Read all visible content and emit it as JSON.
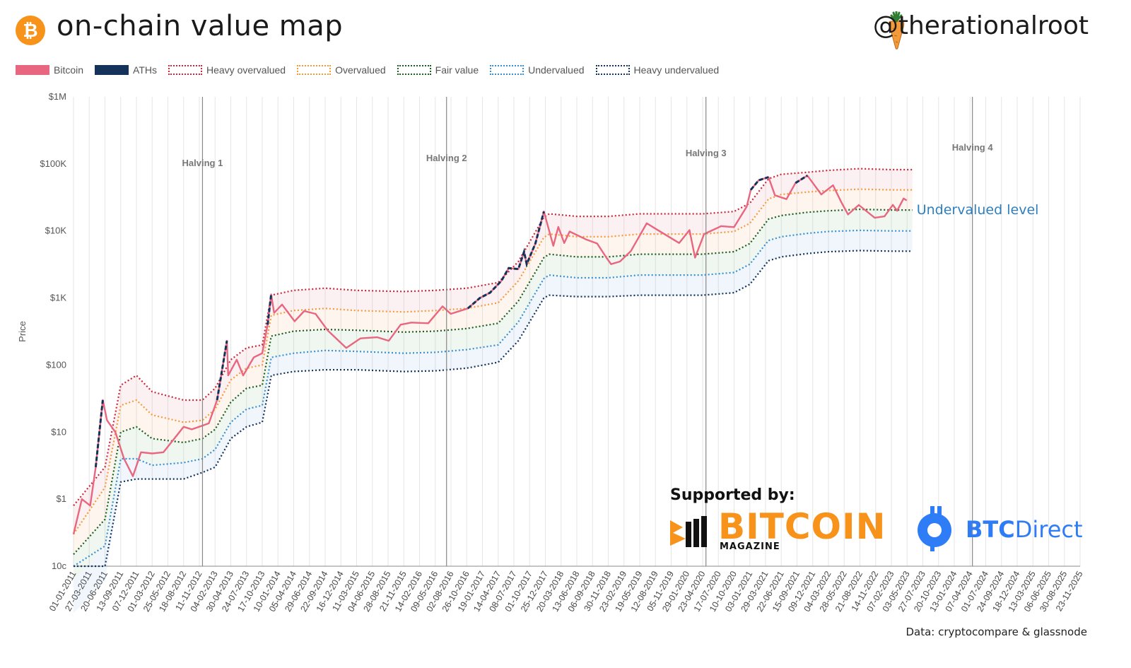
{
  "header": {
    "title": "on-chain value map",
    "handle": "@therationalroot",
    "logo_glyph": "₿",
    "logo_icon": "bitcoin-icon",
    "handle_icon": "carrot-icon"
  },
  "legend": [
    {
      "label": "Bitcoin",
      "color": "#e8667f",
      "style": "solid"
    },
    {
      "label": "ATHs",
      "color": "#14325a",
      "style": "solid"
    },
    {
      "label": "Heavy overvalued",
      "color": "#c8283c",
      "style": "dotted"
    },
    {
      "label": "Overvalued",
      "color": "#f59a3a",
      "style": "dotted"
    },
    {
      "label": "Fair value",
      "color": "#1b5e20",
      "style": "dotted"
    },
    {
      "label": "Undervalued",
      "color": "#3a8fd0",
      "style": "dotted"
    },
    {
      "label": "Heavy undervalued",
      "color": "#14325a",
      "style": "dotted"
    }
  ],
  "chart_data": {
    "type": "line",
    "ylabel": "Price",
    "yscale": "log",
    "ylim": [
      0.1,
      1000000
    ],
    "y_ticks": [
      "10c",
      "$1",
      "$10",
      "$100",
      "$1K",
      "$10K",
      "$100K",
      "$1M"
    ],
    "x_ticks": [
      "01-01-2011",
      "27-03-2011",
      "20-06-2011",
      "13-09-2011",
      "07-12-2011",
      "01-03-2012",
      "25-05-2012",
      "18-08-2012",
      "11-11-2012",
      "04-02-2013",
      "30-04-2013",
      "24-07-2013",
      "17-10-2013",
      "10-01-2014",
      "05-04-2014",
      "29-06-2014",
      "22-09-2014",
      "16-12-2014",
      "11-03-2015",
      "04-06-2015",
      "28-08-2015",
      "21-11-2015",
      "14-02-2016",
      "09-05-2016",
      "02-08-2016",
      "26-10-2016",
      "19-01-2017",
      "14-04-2017",
      "08-07-2017",
      "01-10-2017",
      "25-12-2017",
      "20-03-2018",
      "13-06-2018",
      "06-09-2018",
      "30-11-2018",
      "23-02-2019",
      "19-05-2019",
      "12-08-2019",
      "05-11-2019",
      "29-01-2020",
      "23-04-2020",
      "17-07-2020",
      "10-10-2020",
      "03-01-2021",
      "29-03-2021",
      "22-06-2021",
      "15-09-2021",
      "09-12-2021",
      "04-03-2022",
      "28-05-2022",
      "21-08-2022",
      "14-11-2022",
      "07-02-2023",
      "03-05-2023",
      "27-07-2023",
      "20-10-2023",
      "13-01-2024",
      "07-04-2024",
      "01-07-2024",
      "24-09-2024",
      "18-12-2024",
      "13-03-2025",
      "06-06-2025",
      "30-08-2025",
      "23-11-2025"
    ],
    "halvings": [
      {
        "label": "Halving 1",
        "date": "2012-11-28"
      },
      {
        "label": "Halving 2",
        "date": "2016-07-09"
      },
      {
        "label": "Halving 3",
        "date": "2020-05-11"
      },
      {
        "label": "Halving 4",
        "date": "2024-04-20"
      }
    ],
    "annotation": "Undervalued level",
    "bands": [
      {
        "name": "Heavy overvalued",
        "x": [
          "2011-01-01",
          "2011-06-20",
          "2011-09-13",
          "2011-12-07",
          "2012-03-01",
          "2012-08-18",
          "2012-11-28",
          "2013-02-04",
          "2013-04-30",
          "2013-07-24",
          "2013-10-17",
          "2013-12-05",
          "2014-04-05",
          "2014-09-22",
          "2015-03-11",
          "2015-11-21",
          "2016-05-09",
          "2016-10-26",
          "2017-04-14",
          "2017-08-01",
          "2017-12-17",
          "2018-01-15",
          "2018-06-13",
          "2018-11-30",
          "2019-05-19",
          "2019-11-05",
          "2020-04-23",
          "2020-10-10",
          "2021-01-03",
          "2021-04-14",
          "2021-06-22",
          "2021-11-10",
          "2022-03-04",
          "2022-08-21",
          "2023-02-07",
          "2023-06-01"
        ],
        "values": [
          0.8,
          3,
          50,
          70,
          40,
          30,
          30,
          45,
          120,
          180,
          200,
          1100,
          1300,
          1400,
          1300,
          1250,
          1300,
          1400,
          1700,
          3500,
          16000,
          18000,
          16500,
          16500,
          18000,
          18000,
          18000,
          19500,
          26000,
          60000,
          70000,
          75000,
          80000,
          85000,
          82000,
          82000
        ]
      },
      {
        "name": "Overvalued",
        "x": [
          "2011-01-01",
          "2011-06-20",
          "2011-09-13",
          "2011-12-07",
          "2012-03-01",
          "2012-08-18",
          "2012-11-28",
          "2013-02-04",
          "2013-04-30",
          "2013-07-24",
          "2013-10-17",
          "2013-12-05",
          "2014-04-05",
          "2014-09-22",
          "2015-03-11",
          "2015-11-21",
          "2016-05-09",
          "2016-10-26",
          "2017-04-14",
          "2017-08-01",
          "2017-12-17",
          "2018-01-15",
          "2018-06-13",
          "2018-11-30",
          "2019-05-19",
          "2019-11-05",
          "2020-04-23",
          "2020-10-10",
          "2021-01-03",
          "2021-04-14",
          "2021-06-22",
          "2021-11-10",
          "2022-03-04",
          "2022-08-21",
          "2023-02-07",
          "2023-06-01"
        ],
        "values": [
          0.3,
          1.5,
          25,
          30,
          18,
          14,
          15,
          22,
          60,
          90,
          100,
          550,
          650,
          700,
          650,
          620,
          650,
          700,
          850,
          1800,
          8000,
          9000,
          8200,
          8200,
          9000,
          9000,
          9000,
          9800,
          13000,
          30000,
          35000,
          38000,
          40000,
          42000,
          41000,
          41000
        ]
      },
      {
        "name": "Fair value",
        "x": [
          "2011-01-01",
          "2011-06-20",
          "2011-09-13",
          "2011-12-07",
          "2012-03-01",
          "2012-08-18",
          "2012-11-28",
          "2013-02-04",
          "2013-04-30",
          "2013-07-24",
          "2013-10-17",
          "2013-12-05",
          "2014-04-05",
          "2014-09-22",
          "2015-03-11",
          "2015-11-21",
          "2016-05-09",
          "2016-10-26",
          "2017-04-14",
          "2017-08-01",
          "2017-12-17",
          "2018-01-15",
          "2018-06-13",
          "2018-11-30",
          "2019-05-19",
          "2019-11-05",
          "2020-04-23",
          "2020-10-10",
          "2021-01-03",
          "2021-04-14",
          "2021-06-22",
          "2021-11-10",
          "2022-03-04",
          "2022-08-21",
          "2023-02-07",
          "2023-06-01"
        ],
        "values": [
          0.15,
          0.5,
          10,
          12,
          8,
          7,
          8,
          11,
          28,
          45,
          50,
          270,
          320,
          340,
          330,
          310,
          320,
          350,
          420,
          900,
          4000,
          4500,
          4100,
          4100,
          4500,
          4500,
          4500,
          4900,
          6500,
          15000,
          17000,
          19000,
          20000,
          21000,
          20500,
          20500
        ]
      },
      {
        "name": "Undervalued",
        "x": [
          "2011-01-01",
          "2011-06-20",
          "2011-09-13",
          "2011-12-07",
          "2012-03-01",
          "2012-08-18",
          "2012-11-28",
          "2013-02-04",
          "2013-04-30",
          "2013-07-24",
          "2013-10-17",
          "2013-12-05",
          "2014-04-05",
          "2014-09-22",
          "2015-03-11",
          "2015-11-21",
          "2016-05-09",
          "2016-10-26",
          "2017-04-14",
          "2017-08-01",
          "2017-12-17",
          "2018-01-15",
          "2018-06-13",
          "2018-11-30",
          "2019-05-19",
          "2019-11-05",
          "2020-04-23",
          "2020-10-10",
          "2021-01-03",
          "2021-04-14",
          "2021-06-22",
          "2021-11-10",
          "2022-03-04",
          "2022-08-21",
          "2023-02-07",
          "2023-06-01"
        ],
        "values": [
          0.06,
          0.2,
          4,
          4,
          3.2,
          3.5,
          4,
          5.5,
          14,
          22,
          25,
          130,
          150,
          165,
          160,
          150,
          155,
          170,
          200,
          440,
          1950,
          2200,
          2000,
          2000,
          2200,
          2200,
          2200,
          2400,
          3200,
          7200,
          8200,
          9200,
          9800,
          10200,
          10000,
          10000
        ]
      },
      {
        "name": "Heavy undervalued",
        "x": [
          "2011-01-01",
          "2011-06-20",
          "2011-09-13",
          "2011-12-07",
          "2012-03-01",
          "2012-08-18",
          "2012-11-28",
          "2013-02-04",
          "2013-04-30",
          "2013-07-24",
          "2013-10-17",
          "2013-12-05",
          "2014-04-05",
          "2014-09-22",
          "2015-03-11",
          "2015-11-21",
          "2016-05-09",
          "2016-10-26",
          "2017-04-14",
          "2017-08-01",
          "2017-12-17",
          "2018-01-15",
          "2018-06-13",
          "2018-11-30",
          "2019-05-19",
          "2019-11-05",
          "2020-04-23",
          "2020-10-10",
          "2021-01-03",
          "2021-04-14",
          "2021-06-22",
          "2021-11-10",
          "2022-03-04",
          "2022-08-21",
          "2023-02-07",
          "2023-06-01"
        ],
        "values": [
          0.02,
          0.06,
          1.8,
          2,
          2,
          2,
          2.5,
          3,
          8,
          12,
          14,
          70,
          80,
          85,
          85,
          80,
          82,
          90,
          110,
          230,
          1000,
          1100,
          1050,
          1050,
          1100,
          1100,
          1100,
          1200,
          1600,
          3600,
          4100,
          4600,
          4900,
          5100,
          5000,
          5000
        ]
      }
    ],
    "bitcoin": {
      "x": [
        "2011-01-01",
        "2011-02-15",
        "2011-04-01",
        "2011-05-01",
        "2011-06-08",
        "2011-07-01",
        "2011-08-15",
        "2011-10-01",
        "2011-11-18",
        "2012-01-01",
        "2012-03-01",
        "2012-05-01",
        "2012-08-18",
        "2012-10-01",
        "2012-11-28",
        "2013-01-01",
        "2013-02-15",
        "2013-04-09",
        "2013-04-16",
        "2013-06-01",
        "2013-07-06",
        "2013-09-01",
        "2013-10-17",
        "2013-11-15",
        "2013-12-04",
        "2013-12-20",
        "2014-02-01",
        "2014-04-10",
        "2014-06-01",
        "2014-08-01",
        "2014-10-05",
        "2015-01-14",
        "2015-04-01",
        "2015-07-01",
        "2015-09-01",
        "2015-11-04",
        "2016-01-01",
        "2016-04-01",
        "2016-06-17",
        "2016-08-01",
        "2016-11-01",
        "2017-01-05",
        "2017-03-01",
        "2017-05-01",
        "2017-06-10",
        "2017-08-01",
        "2017-09-01",
        "2017-09-15",
        "2017-11-01",
        "2017-12-17",
        "2018-02-06",
        "2018-03-05",
        "2018-04-06",
        "2018-05-05",
        "2018-08-01",
        "2018-10-01",
        "2018-11-20",
        "2018-12-15",
        "2019-02-01",
        "2019-04-01",
        "2019-06-26",
        "2019-09-01",
        "2019-12-18",
        "2020-02-12",
        "2020-03-13",
        "2020-05-01",
        "2020-08-01",
        "2020-10-10",
        "2020-12-17",
        "2021-01-08",
        "2021-02-20",
        "2021-04-14",
        "2021-05-19",
        "2021-07-20",
        "2021-09-07",
        "2021-11-10",
        "2022-01-24",
        "2022-03-29",
        "2022-05-12",
        "2022-06-18",
        "2022-08-15",
        "2022-11-09",
        "2023-01-01",
        "2023-02-15",
        "2023-03-10",
        "2023-04-14",
        "2023-05-01"
      ],
      "values": [
        0.3,
        1.0,
        0.8,
        3,
        30,
        15,
        10,
        4,
        2.2,
        5,
        4.8,
        5,
        12,
        11,
        12.5,
        13.5,
        30,
        230,
        70,
        120,
        70,
        130,
        150,
        400,
        1130,
        600,
        800,
        450,
        640,
        580,
        330,
        180,
        250,
        260,
        230,
        400,
        430,
        420,
        750,
        580,
        700,
        1000,
        1200,
        1800,
        2800,
        2700,
        4900,
        3200,
        6500,
        19500,
        6000,
        11500,
        6600,
        9800,
        7500,
        6500,
        4000,
        3200,
        3500,
        5000,
        13000,
        10000,
        6600,
        10300,
        4000,
        9000,
        11800,
        11400,
        23000,
        41000,
        57000,
        63500,
        34000,
        29800,
        52000,
        67000,
        35000,
        48000,
        27000,
        17600,
        24400,
        15700,
        16500,
        24500,
        20000,
        30500,
        28500
      ]
    }
  },
  "footer": {
    "source": "Data: cryptocompare & glassnode",
    "supported_by": "Supported by:",
    "bitcoin_magazine": "BITCOIN",
    "bitcoin_magazine_sub": "MAGAZINE",
    "btc_direct_bold": "BTC",
    "btc_direct_light": "Direct"
  }
}
